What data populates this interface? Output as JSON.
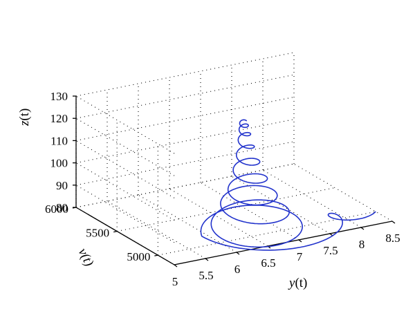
{
  "chart_data": {
    "type": "line3d",
    "title": "",
    "x_axis": {
      "label": "y(t)",
      "label_var": "y",
      "label_arg": "(t)",
      "range": [
        5,
        8.5
      ],
      "ticks": [
        "5",
        "5.5",
        "6",
        "6.5",
        "7",
        "7.5",
        "8",
        "8.5"
      ]
    },
    "y_axis": {
      "label": "v(t)",
      "label_var": "v",
      "label_arg": "(t)",
      "range": [
        4800,
        6000
      ],
      "ticks": [
        "5000",
        "5500",
        "6000"
      ]
    },
    "z_axis": {
      "label": "z(t)",
      "label_var": "z",
      "label_arg": "(t)",
      "range": [
        80,
        130
      ],
      "ticks": [
        "80",
        "90",
        "100",
        "110",
        "120",
        "130"
      ]
    },
    "grid": "dotted",
    "box": true,
    "series": [
      {
        "color": "#2233cc",
        "description_points": [
          {
            "y": 8.5,
            "v": 5000,
            "z": 80
          },
          {
            "y": 5.4,
            "v": 5600,
            "z": 85
          },
          {
            "y": 7.8,
            "v": 5450,
            "z": 102
          },
          {
            "y": 6.9,
            "v": 5500,
            "z": 113
          },
          {
            "y": 7.1,
            "v": 5550,
            "z": 116
          }
        ]
      }
    ]
  }
}
